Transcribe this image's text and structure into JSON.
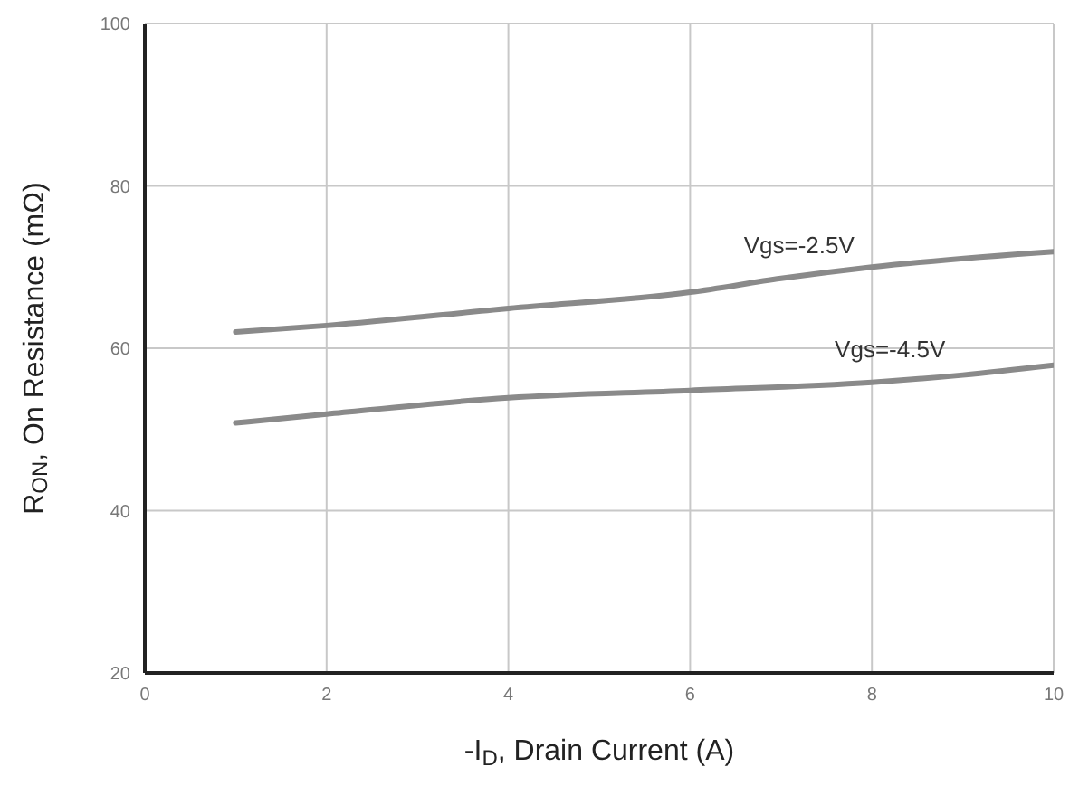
{
  "chart_data": {
    "type": "line",
    "xlabel": "-I$_{D}$, Drain Current (A)",
    "ylabel": "R$_{ON}$, On Resistance (mΩ)",
    "series": [
      {
        "name": "Vgs=-2.5V",
        "color": "#8a8a8a",
        "x": [
          1,
          2,
          4,
          6,
          7,
          8,
          10
        ],
        "values": [
          62,
          62.8,
          64.9,
          66.9,
          68.6,
          70,
          71.9
        ]
      },
      {
        "name": "Vgs=-4.5V",
        "color": "#8a8a8a",
        "x": [
          1,
          2,
          4,
          6,
          8,
          9,
          10
        ],
        "values": [
          50.8,
          51.9,
          53.9,
          54.8,
          55.8,
          56.7,
          57.9
        ]
      }
    ],
    "xlim": [
      0,
      10
    ],
    "xticks": [
      0,
      2,
      4,
      6,
      8,
      10
    ],
    "ylim": [
      20,
      100
    ],
    "yticks": [
      20,
      40,
      60,
      80,
      100
    ],
    "grid": true,
    "marker": "none",
    "line_style": "solid",
    "legend": false
  }
}
